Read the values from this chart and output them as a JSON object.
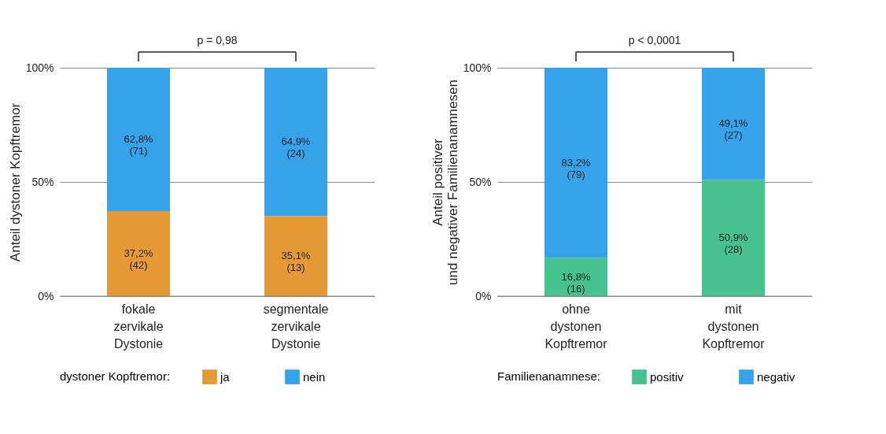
{
  "chart_data": [
    {
      "type": "bar",
      "stacked": true,
      "ylabel": "Anteil dystoner Kopftremor",
      "legend_title": "dystoner Kopftremor:",
      "legend": "bottom",
      "grid": "y",
      "categories": [
        "fokale zervikale Dystonie",
        "segmentale zervikale Dystonie"
      ],
      "ylim": [
        0,
        100
      ],
      "yticks": [
        {
          "value": 0,
          "label": "0%"
        },
        {
          "value": 50,
          "label": "50%"
        },
        {
          "value": 100,
          "label": "100%"
        }
      ],
      "series": [
        {
          "name": "ja",
          "color": "#e69a35",
          "values": [
            37.2,
            35.1
          ],
          "value_labels": [
            "37,2% (42)",
            "35,1% (13)"
          ]
        },
        {
          "name": "nein",
          "color": "#35a2ea",
          "values": [
            62.8,
            64.9
          ],
          "value_labels": [
            "62,8% (71)",
            "64,9% (24)"
          ]
        }
      ],
      "annotations": [
        "p = 0,98"
      ]
    },
    {
      "type": "bar",
      "stacked": true,
      "ylabel": "Anteil positiver und negativer Familienanamnesen",
      "legend_title": "Familienanamnese:",
      "legend": "bottom",
      "grid": "y",
      "categories": [
        "ohne dystonen Kopftremor",
        "mit dystonen Kopftremor"
      ],
      "ylim": [
        0,
        100
      ],
      "yticks": [
        {
          "value": 0,
          "label": "0%"
        },
        {
          "value": 50,
          "label": "50%"
        },
        {
          "value": 100,
          "label": "100%"
        }
      ],
      "series": [
        {
          "name": "positiv",
          "color": "#45c28e",
          "values": [
            16.8,
            50.9
          ],
          "value_labels": [
            "16,8% (16)",
            "50,9% (28)"
          ]
        },
        {
          "name": "negativ",
          "color": "#35a2ea",
          "values": [
            83.2,
            49.1
          ],
          "value_labels": [
            "83,2% (79)",
            "49,1% (27)"
          ]
        }
      ],
      "annotations": [
        "p < 0,0001"
      ]
    }
  ]
}
